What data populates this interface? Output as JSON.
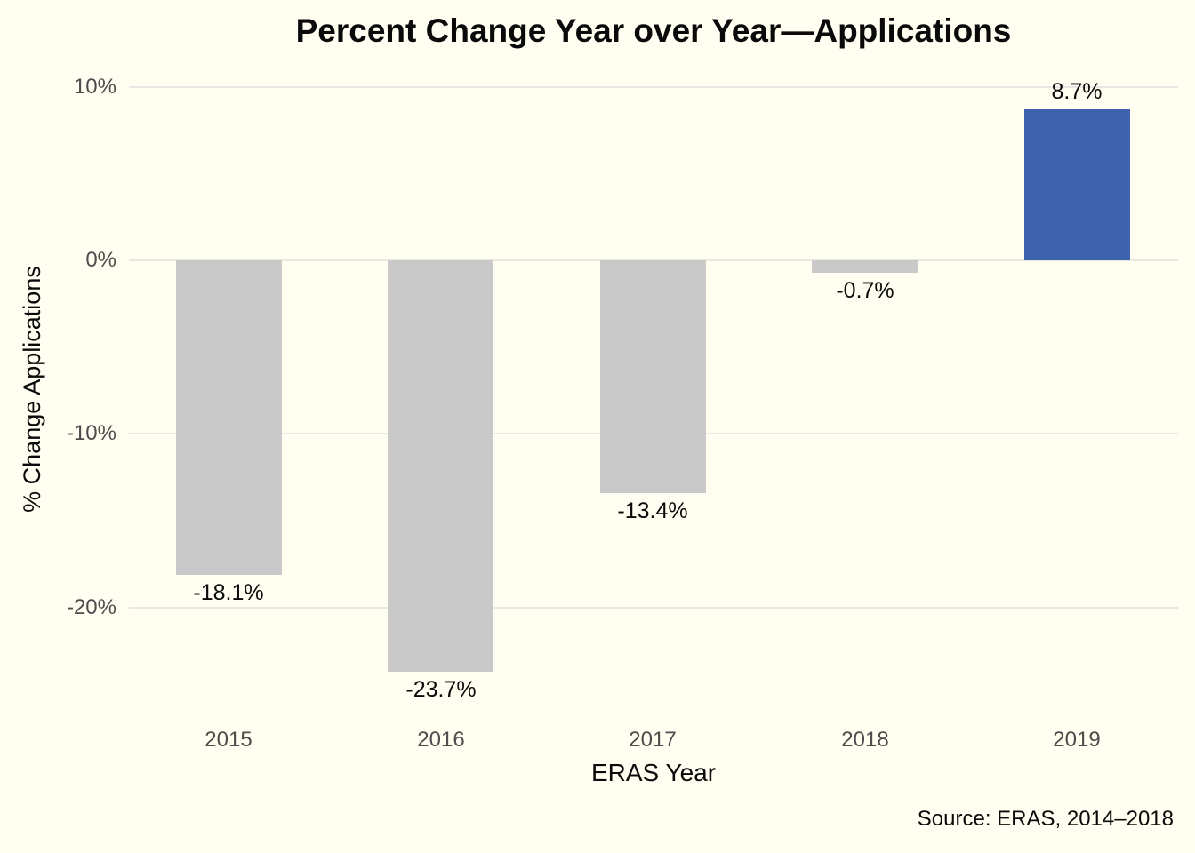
{
  "chart_data": {
    "type": "bar",
    "title": "Percent Change Year over Year—Applications",
    "xlabel": "ERAS Year",
    "ylabel": "% Change Applications",
    "source": "Source: ERAS, 2014–2018",
    "categories": [
      "2015",
      "2016",
      "2017",
      "2018",
      "2019"
    ],
    "values": [
      -18.1,
      -23.7,
      -13.4,
      -0.7,
      8.7
    ],
    "value_labels": [
      "-18.1%",
      "-23.7%",
      "-13.4%",
      "-0.7%",
      "8.7%"
    ],
    "bar_colors": [
      "#C9C9C9",
      "#C9C9C9",
      "#C9C9C9",
      "#C9C9C9",
      "#3E63AC"
    ],
    "yticks": [
      10,
      0,
      -10,
      -20
    ],
    "ytick_labels": [
      "10%",
      "0%",
      "-10%",
      "-20%"
    ],
    "ylim": [
      -26.2,
      10.6
    ],
    "grid": true,
    "legend": false,
    "colors": {
      "background": "#FFFEF0",
      "gridline": "#E8E8E3",
      "bar_gray": "#C9C9C9",
      "bar_blue": "#3E63AC",
      "tick_label": "#4D4D4D",
      "text": "#0A0A0A"
    }
  }
}
